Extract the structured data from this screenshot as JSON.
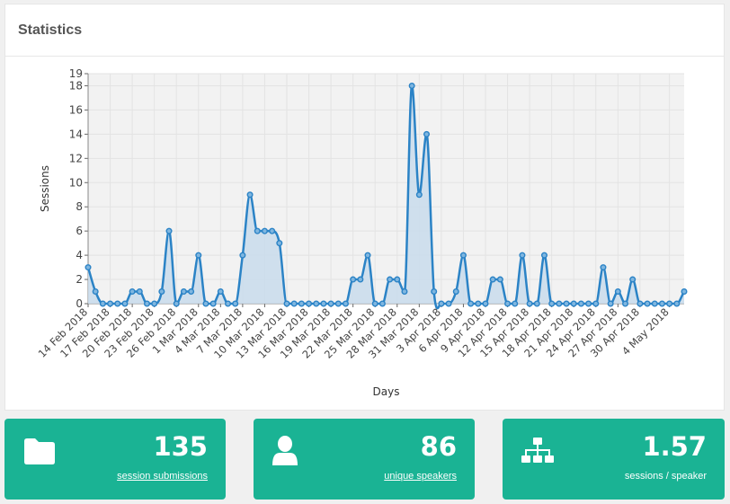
{
  "panel": {
    "title": "Statistics"
  },
  "chart_data": {
    "type": "area",
    "xlabel": "Days",
    "ylabel": "Sessions",
    "ylim": [
      0,
      19
    ],
    "yticks": [
      0,
      2,
      4,
      6,
      8,
      10,
      12,
      14,
      16,
      18,
      19
    ],
    "grid": true,
    "start_date": "2018-02-14",
    "x_tick_labels": [
      "14 Feb 2018",
      "17 Feb 2018",
      "20 Feb 2018",
      "23 Feb 2018",
      "26 Feb 2018",
      "1 Mar 2018",
      "4 Mar 2018",
      "7 Mar 2018",
      "10 Mar 2018",
      "13 Mar 2018",
      "16 Mar 2018",
      "19 Mar 2018",
      "22 Mar 2018",
      "25 Mar 2018",
      "28 Mar 2018",
      "31 Mar 2018",
      "3 Apr 2018",
      "6 Apr 2018",
      "9 Apr 2018",
      "12 Apr 2018",
      "15 Apr 2018",
      "18 Apr 2018",
      "21 Apr 2018",
      "24 Apr 2018",
      "27 Apr 2018",
      "30 Apr 2018",
      "4 May 2018"
    ],
    "values": [
      3,
      1,
      0,
      0,
      0,
      0,
      1,
      1,
      0,
      0,
      1,
      6,
      0,
      1,
      1,
      4,
      0,
      0,
      1,
      0,
      0,
      4,
      9,
      6,
      6,
      6,
      5,
      0,
      0,
      0,
      0,
      0,
      0,
      0,
      0,
      0,
      2,
      2,
      4,
      0,
      0,
      2,
      2,
      1,
      18,
      9,
      14,
      1,
      0,
      0,
      1,
      4,
      0,
      0,
      0,
      2,
      2,
      0,
      0,
      4,
      0,
      0,
      4,
      0,
      0,
      0,
      0,
      0,
      0,
      0,
      3,
      0,
      1,
      0,
      2,
      0,
      0,
      0,
      0,
      0,
      0,
      1
    ],
    "colors": {
      "line": "#2b83c6",
      "fill": "#c9dcec",
      "plot_bg": "#f2f2f2",
      "grid": "#e3e3e3"
    }
  },
  "stats": [
    {
      "icon": "folder-icon",
      "value": "135",
      "label": "session submissions",
      "link": true
    },
    {
      "icon": "user-icon",
      "value": "86",
      "label": "unique speakers",
      "link": true
    },
    {
      "icon": "sitemap-icon",
      "value": "1.57",
      "label": "sessions / speaker",
      "link": false
    }
  ]
}
